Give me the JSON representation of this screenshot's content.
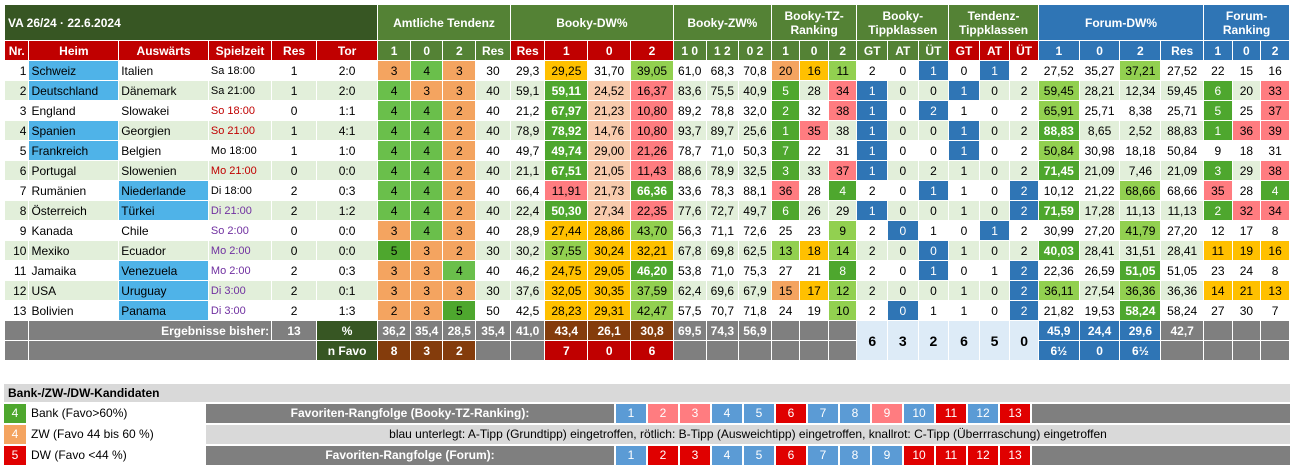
{
  "title": "VA 26/24 · 22.6.2024",
  "groups": {
    "amtliche": "Amtliche Tendenz",
    "booky_dw": "Booky-DW%",
    "booky_zw": "Booky-ZW%",
    "booky_tz": "Booky-TZ-Ranking",
    "booky_tk": "Booky-Tippklassen",
    "tendenz_tk": "Tendenz-Tippklassen",
    "forum_dw": "Forum-DW%",
    "forum_r": "Forum-Ranking"
  },
  "cols": {
    "nr": "Nr.",
    "heim": "Heim",
    "ausw": "Auswärts",
    "spielzeit": "Spielzeit",
    "res": "Res",
    "tor": "Tor",
    "t1": "1",
    "t0": "0",
    "t2": "2",
    "zw10": "1 0",
    "zw12": "1 2",
    "zw02": "0 2",
    "gt": "GT",
    "at": "AT",
    "ut": "ÜT"
  },
  "rows": [
    {
      "nr": "1",
      "heim": "Schweiz",
      "ausw": "Italien",
      "zeit": "Sa 18:00",
      "res": "1",
      "tor": "2:0",
      "a": [
        "3",
        "4",
        "3",
        "30"
      ],
      "bres": "29,3",
      "bd": [
        "29,25",
        "31,70",
        "39,05"
      ],
      "zw": [
        "61,0",
        "68,3",
        "70,8"
      ],
      "tz": [
        "20",
        "16",
        "11"
      ],
      "btk": [
        "2",
        "0",
        "1"
      ],
      "ttk": [
        "0",
        "1",
        "2"
      ],
      "fd": [
        "27,52",
        "35,27",
        "37,21",
        "27,52"
      ],
      "fr": [
        "22",
        "15",
        "16"
      ]
    },
    {
      "nr": "2",
      "heim": "Deutschland",
      "ausw": "Dänemark",
      "zeit": "Sa 21:00",
      "res": "1",
      "tor": "2:0",
      "a": [
        "4",
        "3",
        "3",
        "40"
      ],
      "bres": "59,1",
      "bd": [
        "59,11",
        "24,52",
        "16,37"
      ],
      "zw": [
        "83,6",
        "75,5",
        "40,9"
      ],
      "tz": [
        "5",
        "28",
        "34"
      ],
      "btk": [
        "1",
        "0",
        "0"
      ],
      "ttk": [
        "1",
        "0",
        "2"
      ],
      "fd": [
        "59,45",
        "28,21",
        "12,34",
        "59,45"
      ],
      "fr": [
        "6",
        "20",
        "33"
      ]
    },
    {
      "nr": "3",
      "heim": "England",
      "ausw": "Slowakei",
      "zeit": "So 18:00",
      "res": "0",
      "tor": "1:1",
      "a": [
        "4",
        "4",
        "2",
        "40"
      ],
      "bres": "21,2",
      "bd": [
        "67,97",
        "21,23",
        "10,80"
      ],
      "zw": [
        "89,2",
        "78,8",
        "32,0"
      ],
      "tz": [
        "2",
        "32",
        "38"
      ],
      "btk": [
        "1",
        "0",
        "2"
      ],
      "ttk": [
        "1",
        "0",
        "2"
      ],
      "fd": [
        "65,91",
        "25,71",
        "8,38",
        "25,71"
      ],
      "fr": [
        "5",
        "25",
        "37"
      ]
    },
    {
      "nr": "4",
      "heim": "Spanien",
      "ausw": "Georgien",
      "zeit": "So 21:00",
      "res": "1",
      "tor": "4:1",
      "a": [
        "4",
        "4",
        "2",
        "40"
      ],
      "bres": "78,9",
      "bd": [
        "78,92",
        "14,76",
        "10,80"
      ],
      "zw": [
        "93,7",
        "89,7",
        "25,6"
      ],
      "tz": [
        "1",
        "35",
        "38"
      ],
      "btk": [
        "1",
        "0",
        "0"
      ],
      "ttk": [
        "1",
        "0",
        "2"
      ],
      "fd": [
        "88,83",
        "8,65",
        "2,52",
        "88,83"
      ],
      "fr": [
        "1",
        "36",
        "39"
      ]
    },
    {
      "nr": "5",
      "heim": "Frankreich",
      "ausw": "Belgien",
      "zeit": "Mo 18:00",
      "res": "1",
      "tor": "1:0",
      "a": [
        "4",
        "4",
        "2",
        "40"
      ],
      "bres": "49,7",
      "bd": [
        "49,74",
        "29,00",
        "21,26"
      ],
      "zw": [
        "78,7",
        "71,0",
        "50,3"
      ],
      "tz": [
        "7",
        "22",
        "31"
      ],
      "btk": [
        "1",
        "0",
        "0"
      ],
      "ttk": [
        "1",
        "0",
        "2"
      ],
      "fd": [
        "50,84",
        "30,98",
        "18,18",
        "50,84"
      ],
      "fr": [
        "9",
        "18",
        "31"
      ]
    },
    {
      "nr": "6",
      "heim": "Portugal",
      "ausw": "Slowenien",
      "zeit": "Mo 21:00",
      "res": "0",
      "tor": "0:0",
      "a": [
        "4",
        "4",
        "2",
        "40"
      ],
      "bres": "21,1",
      "bd": [
        "67,51",
        "21,05",
        "11,43"
      ],
      "zw": [
        "88,6",
        "78,9",
        "32,5"
      ],
      "tz": [
        "3",
        "33",
        "37"
      ],
      "btk": [
        "1",
        "0",
        "2"
      ],
      "ttk": [
        "1",
        "0",
        "2"
      ],
      "fd": [
        "71,45",
        "21,09",
        "7,46",
        "21,09"
      ],
      "fr": [
        "3",
        "29",
        "38"
      ]
    },
    {
      "nr": "7",
      "heim": "Rumänien",
      "ausw": "Niederlande",
      "zeit": "Di 18:00",
      "res": "2",
      "tor": "0:3",
      "a": [
        "4",
        "4",
        "2",
        "40"
      ],
      "bres": "66,4",
      "bd": [
        "11,91",
        "21,73",
        "66,36"
      ],
      "zw": [
        "33,6",
        "78,3",
        "88,1"
      ],
      "tz": [
        "36",
        "28",
        "4"
      ],
      "btk": [
        "2",
        "0",
        "1"
      ],
      "ttk": [
        "1",
        "0",
        "2"
      ],
      "fd": [
        "10,12",
        "21,22",
        "68,66",
        "68,66"
      ],
      "fr": [
        "35",
        "28",
        "4"
      ]
    },
    {
      "nr": "8",
      "heim": "Österreich",
      "ausw": "Türkei",
      "zeit": "Di 21:00",
      "res": "2",
      "tor": "1:2",
      "a": [
        "4",
        "4",
        "2",
        "40"
      ],
      "bres": "22,4",
      "bd": [
        "50,30",
        "27,34",
        "22,35"
      ],
      "zw": [
        "77,6",
        "72,7",
        "49,7"
      ],
      "tz": [
        "6",
        "26",
        "29"
      ],
      "btk": [
        "1",
        "0",
        "0"
      ],
      "ttk": [
        "1",
        "0",
        "2"
      ],
      "fd": [
        "71,59",
        "17,28",
        "11,13",
        "11,13"
      ],
      "fr": [
        "2",
        "32",
        "34"
      ]
    },
    {
      "nr": "9",
      "heim": "Kanada",
      "ausw": "Chile",
      "zeit": "So 2:00",
      "res": "0",
      "tor": "0:0",
      "a": [
        "3",
        "4",
        "3",
        "40"
      ],
      "bres": "28,9",
      "bd": [
        "27,44",
        "28,86",
        "43,70"
      ],
      "zw": [
        "56,3",
        "71,1",
        "72,6"
      ],
      "tz": [
        "25",
        "23",
        "9"
      ],
      "btk": [
        "2",
        "0",
        "1"
      ],
      "ttk": [
        "0",
        "1",
        "2"
      ],
      "fd": [
        "30,99",
        "27,20",
        "41,79",
        "27,20"
      ],
      "fr": [
        "12",
        "17",
        "8"
      ]
    },
    {
      "nr": "10",
      "heim": "Mexiko",
      "ausw": "Ecuador",
      "zeit": "Mo 2:00",
      "res": "0",
      "tor": "0:0",
      "a": [
        "5",
        "3",
        "2",
        "30"
      ],
      "bres": "30,2",
      "bd": [
        "37,55",
        "30,24",
        "32,21"
      ],
      "zw": [
        "67,8",
        "69,8",
        "62,5"
      ],
      "tz": [
        "13",
        "18",
        "14"
      ],
      "btk": [
        "2",
        "0",
        "0"
      ],
      "ttk": [
        "1",
        "0",
        "2"
      ],
      "fd": [
        "40,03",
        "28,41",
        "31,51",
        "28,41"
      ],
      "fr": [
        "11",
        "19",
        "16"
      ]
    },
    {
      "nr": "11",
      "heim": "Jamaika",
      "ausw": "Venezuela",
      "zeit": "Mo 2:00",
      "res": "2",
      "tor": "0:3",
      "a": [
        "3",
        "3",
        "4",
        "40"
      ],
      "bres": "46,2",
      "bd": [
        "24,75",
        "29,05",
        "46,20"
      ],
      "zw": [
        "53,8",
        "71,0",
        "75,3"
      ],
      "tz": [
        "27",
        "21",
        "8"
      ],
      "btk": [
        "2",
        "0",
        "1"
      ],
      "ttk": [
        "0",
        "1",
        "2"
      ],
      "fd": [
        "22,36",
        "26,59",
        "51,05",
        "51,05"
      ],
      "fr": [
        "23",
        "24",
        "8"
      ]
    },
    {
      "nr": "12",
      "heim": "USA",
      "ausw": "Uruguay",
      "zeit": "Di 3:00",
      "res": "2",
      "tor": "0:1",
      "a": [
        "3",
        "3",
        "3",
        "30"
      ],
      "bres": "37,6",
      "bd": [
        "32,05",
        "30,35",
        "37,59"
      ],
      "zw": [
        "62,4",
        "69,6",
        "67,9"
      ],
      "tz": [
        "15",
        "17",
        "12"
      ],
      "btk": [
        "2",
        "0",
        "0"
      ],
      "ttk": [
        "1",
        "0",
        "2"
      ],
      "fd": [
        "36,11",
        "27,54",
        "36,36",
        "36,36"
      ],
      "fr": [
        "14",
        "21",
        "13"
      ]
    },
    {
      "nr": "13",
      "heim": "Bolivien",
      "ausw": "Panama",
      "zeit": "Di 3:00",
      "res": "2",
      "tor": "1:3",
      "a": [
        "2",
        "3",
        "5",
        "50"
      ],
      "bres": "42,5",
      "bd": [
        "28,23",
        "29,31",
        "42,47"
      ],
      "zw": [
        "57,5",
        "70,7",
        "71,8"
      ],
      "tz": [
        "24",
        "19",
        "10"
      ],
      "btk": [
        "2",
        "0",
        "1"
      ],
      "ttk": [
        "1",
        "0",
        "2"
      ],
      "fd": [
        "21,82",
        "19,53",
        "58,24",
        "58,24"
      ],
      "fr": [
        "27",
        "30",
        "7"
      ]
    }
  ],
  "summary": {
    "label": "Ergebnisse bisher:",
    "count": "13",
    "pct": "%",
    "nfavo": "n Favo",
    "amt_pct": [
      "36,2",
      "35,4",
      "28,5",
      "35,4"
    ],
    "bres": "41,0",
    "bd_pct": [
      "43,4",
      "26,1",
      "30,8"
    ],
    "zw_pct": [
      "69,5",
      "74,3",
      "56,9"
    ],
    "bd_n": [
      "7",
      "0",
      "6"
    ],
    "amt_n": [
      "8",
      "3",
      "2"
    ],
    "btk": [
      "6",
      "3",
      "2"
    ],
    "ttk": [
      "6",
      "5",
      "0"
    ],
    "fd_pct": [
      "45,9",
      "24,4",
      "29,6",
      "42,7"
    ],
    "fd_n": [
      "6½",
      "0",
      "6½"
    ]
  },
  "legend": {
    "title": "Bank-/ZW-/DW-Kandidaten",
    "items": [
      {
        "n": "4",
        "t": "Bank (Favo>60%)"
      },
      {
        "n": "4",
        "t": "ZW (Favo 44 bis 60 %)"
      },
      {
        "n": "5",
        "t": "DW (Favo <44 %)"
      }
    ]
  },
  "rank1": {
    "label": "Favoriten-Rangfolge (Booky-TZ-Ranking):",
    "nums": [
      "1",
      "2",
      "3",
      "4",
      "5",
      "6",
      "7",
      "8",
      "9",
      "10",
      "11",
      "12",
      "13"
    ]
  },
  "note": "blau unterlegt: A-Tipp (Grundtipp) eingetroffen, rötlich: B-Tipp (Ausweichtipp) eingetroffen, knallrot: C-Tipp (Überrraschung) eingetroffen",
  "rank2": {
    "label": "Favoriten-Rangfolge (Forum):",
    "nums": [
      "1",
      "2",
      "3",
      "4",
      "5",
      "6",
      "7",
      "8",
      "9",
      "10",
      "11",
      "12",
      "13"
    ]
  }
}
